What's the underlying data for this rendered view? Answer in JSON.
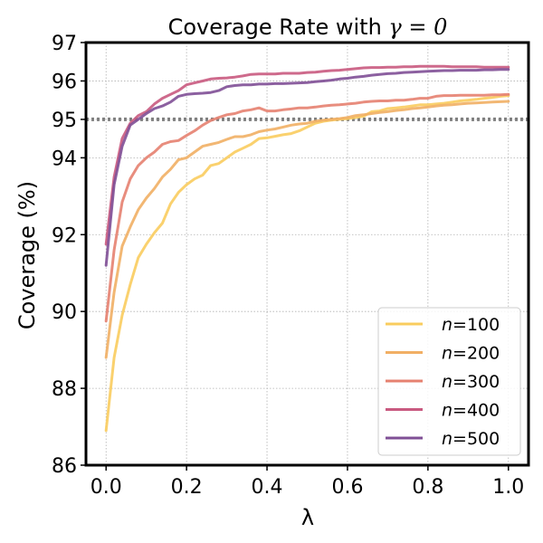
{
  "chart_data": {
    "type": "line",
    "title_text": "Coverage Rate with ",
    "title_gamma": "γ = 0",
    "xlabel": "λ",
    "ylabel": "Coverage (%)",
    "xlim": [
      -0.05,
      1.05
    ],
    "ylim": [
      86,
      97
    ],
    "xticks": [
      0.0,
      0.2,
      0.4,
      0.6,
      0.8,
      1.0
    ],
    "xtick_labels": [
      "0.0",
      "0.2",
      "0.4",
      "0.6",
      "0.8",
      "1.0"
    ],
    "yticks": [
      86,
      88,
      90,
      92,
      94,
      95,
      96,
      97
    ],
    "ytick_labels": [
      "86",
      "88",
      "90",
      "92",
      "94",
      "95",
      "96",
      "97"
    ],
    "grid": true,
    "reference_line": {
      "y": 95,
      "style": "dotted",
      "color": "#808080"
    },
    "legend_position": "lower-right",
    "x": [
      0.0,
      0.02,
      0.04,
      0.06,
      0.08,
      0.1,
      0.12,
      0.14,
      0.16,
      0.18,
      0.2,
      0.22,
      0.24,
      0.26,
      0.28,
      0.3,
      0.32,
      0.34,
      0.36,
      0.38,
      0.4,
      0.42,
      0.44,
      0.46,
      0.48,
      0.5,
      0.52,
      0.54,
      0.56,
      0.58,
      0.6,
      0.62,
      0.64,
      0.66,
      0.68,
      0.7,
      0.72,
      0.74,
      0.76,
      0.78,
      0.8,
      0.82,
      0.84,
      0.86,
      0.88,
      0.9,
      0.92,
      0.94,
      0.96,
      0.98,
      1.0
    ],
    "series": [
      {
        "name_var": "n",
        "name_val": "=100",
        "color": "#f9cc5e",
        "values": [
          86.9,
          88.8,
          89.9,
          90.7,
          91.4,
          91.75,
          92.05,
          92.3,
          92.8,
          93.1,
          93.3,
          93.45,
          93.55,
          93.8,
          93.85,
          94.0,
          94.15,
          94.25,
          94.35,
          94.5,
          94.52,
          94.56,
          94.6,
          94.63,
          94.7,
          94.8,
          94.9,
          94.95,
          94.98,
          95.0,
          95.02,
          95.05,
          95.08,
          95.2,
          95.22,
          95.28,
          95.3,
          95.32,
          95.35,
          95.38,
          95.38,
          95.4,
          95.42,
          95.45,
          95.48,
          95.5,
          95.52,
          95.55,
          95.57,
          95.6,
          95.62
        ]
      },
      {
        "name_var": "n",
        "name_val": "=200",
        "color": "#f1af64",
        "values": [
          88.8,
          90.5,
          91.7,
          92.2,
          92.65,
          92.95,
          93.2,
          93.5,
          93.7,
          93.95,
          94.0,
          94.15,
          94.3,
          94.35,
          94.4,
          94.48,
          94.55,
          94.55,
          94.6,
          94.68,
          94.72,
          94.75,
          94.8,
          94.85,
          94.88,
          94.9,
          94.95,
          94.98,
          95.0,
          95.02,
          95.05,
          95.1,
          95.12,
          95.15,
          95.18,
          95.2,
          95.23,
          95.25,
          95.28,
          95.3,
          95.32,
          95.35,
          95.37,
          95.38,
          95.4,
          95.42,
          95.43,
          95.44,
          95.45,
          95.46,
          95.47
        ]
      },
      {
        "name_var": "n",
        "name_val": "=300",
        "color": "#e68170",
        "values": [
          89.75,
          91.6,
          92.85,
          93.45,
          93.8,
          94.0,
          94.15,
          94.35,
          94.42,
          94.45,
          94.58,
          94.7,
          94.85,
          94.97,
          95.05,
          95.12,
          95.15,
          95.22,
          95.25,
          95.3,
          95.22,
          95.22,
          95.25,
          95.27,
          95.3,
          95.3,
          95.32,
          95.35,
          95.37,
          95.38,
          95.4,
          95.42,
          95.45,
          95.47,
          95.48,
          95.48,
          95.5,
          95.5,
          95.52,
          95.55,
          95.55,
          95.6,
          95.62,
          95.62,
          95.63,
          95.63,
          95.63,
          95.63,
          95.64,
          95.64,
          95.65
        ]
      },
      {
        "name_var": "n",
        "name_val": "=400",
        "color": "#c95a80",
        "values": [
          91.75,
          93.5,
          94.5,
          94.9,
          95.1,
          95.2,
          95.4,
          95.55,
          95.65,
          95.75,
          95.9,
          95.95,
          96.0,
          96.05,
          96.07,
          96.08,
          96.1,
          96.13,
          96.17,
          96.18,
          96.18,
          96.18,
          96.2,
          96.2,
          96.2,
          96.22,
          96.23,
          96.25,
          96.27,
          96.28,
          96.3,
          96.32,
          96.34,
          96.35,
          96.35,
          96.36,
          96.36,
          96.37,
          96.37,
          96.38,
          96.38,
          96.38,
          96.38,
          96.37,
          96.37,
          96.37,
          96.37,
          96.36,
          96.36,
          96.36,
          96.36
        ]
      },
      {
        "name_var": "n",
        "name_val": "=500",
        "color": "#7f4f96",
        "values": [
          91.2,
          93.3,
          94.3,
          94.85,
          95.0,
          95.15,
          95.28,
          95.35,
          95.45,
          95.6,
          95.65,
          95.67,
          95.68,
          95.7,
          95.75,
          95.85,
          95.88,
          95.9,
          95.9,
          95.92,
          95.92,
          95.93,
          95.93,
          95.94,
          95.95,
          95.96,
          95.98,
          96.0,
          96.02,
          96.05,
          96.07,
          96.1,
          96.12,
          96.15,
          96.17,
          96.19,
          96.2,
          96.22,
          96.23,
          96.24,
          96.25,
          96.26,
          96.27,
          96.27,
          96.28,
          96.28,
          96.28,
          96.29,
          96.29,
          96.3,
          96.3
        ]
      }
    ]
  }
}
